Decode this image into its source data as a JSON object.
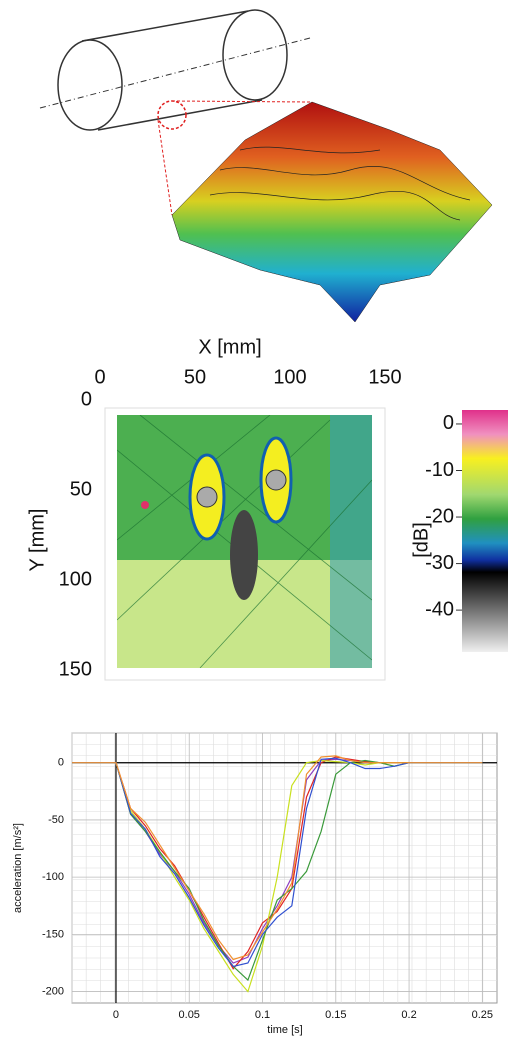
{
  "chart_data": [
    {
      "type": "heatmap",
      "xlabel": "X [mm]",
      "ylabel": "Y [mm]",
      "xlim": [
        0,
        150
      ],
      "ylim": [
        0,
        150
      ],
      "xticks": [
        0,
        50,
        100,
        150
      ],
      "yticks": [
        0,
        50,
        100,
        150
      ],
      "colorbar": {
        "label": "[dB]",
        "lim": [
          -49,
          3
        ],
        "ticks": [
          0,
          -10,
          -20,
          -30,
          -40
        ]
      }
    },
    {
      "type": "line",
      "xlabel": "time [s]",
      "ylabel": "acceleration [m/s²]",
      "x": [
        -0.03,
        -0.02,
        -0.01,
        0,
        0.01,
        0.02,
        0.03,
        0.04,
        0.05,
        0.06,
        0.07,
        0.08,
        0.09,
        0.1,
        0.11,
        0.12,
        0.13,
        0.14,
        0.15,
        0.16,
        0.17,
        0.18,
        0.19,
        0.2,
        0.21,
        0.22,
        0.23,
        0.24,
        0.25
      ],
      "series": [
        {
          "color": "#8e3fc0",
          "values": [
            0,
            0,
            0,
            0,
            -45,
            -60,
            -80,
            -95,
            -115,
            -140,
            -160,
            -175,
            -170,
            -145,
            -125,
            -100,
            -15,
            2,
            3,
            2,
            1,
            0,
            0,
            0,
            0,
            0,
            0,
            0,
            0
          ]
        },
        {
          "color": "#e02424",
          "values": [
            0,
            0,
            0,
            0,
            -40,
            -55,
            -75,
            -90,
            -112,
            -135,
            -158,
            -180,
            -165,
            -140,
            -130,
            -110,
            -30,
            0,
            5,
            3,
            1,
            0,
            0,
            0,
            0,
            0,
            0,
            0,
            0
          ]
        },
        {
          "color": "#c8e01e",
          "values": [
            0,
            0,
            0,
            0,
            -42,
            -58,
            -78,
            -100,
            -120,
            -145,
            -165,
            -185,
            -200,
            -160,
            -100,
            -20,
            0,
            2,
            1,
            0,
            -2,
            0,
            0,
            0,
            0,
            0,
            0,
            0,
            0
          ]
        },
        {
          "color": "#3a9a3a",
          "values": [
            0,
            0,
            0,
            0,
            -45,
            -60,
            -78,
            -95,
            -110,
            -138,
            -160,
            -178,
            -190,
            -155,
            -120,
            -110,
            -95,
            -60,
            -10,
            0,
            2,
            0,
            -3,
            0,
            0,
            0,
            0,
            0,
            0
          ]
        },
        {
          "color": "#3050d0",
          "values": [
            0,
            0,
            0,
            0,
            -44,
            -58,
            -82,
            -97,
            -118,
            -142,
            -162,
            -178,
            -175,
            -150,
            -135,
            -125,
            -40,
            3,
            4,
            0,
            -5,
            -5,
            -3,
            0,
            0,
            0,
            0,
            0,
            0
          ]
        },
        {
          "color": "#f09030",
          "values": [
            0,
            0,
            0,
            0,
            -40,
            -52,
            -72,
            -92,
            -112,
            -132,
            -155,
            -172,
            -168,
            -148,
            -128,
            -105,
            -10,
            5,
            6,
            2,
            0,
            0,
            0,
            0,
            0,
            0,
            0,
            0,
            0
          ]
        }
      ],
      "xlim": [
        -0.03,
        0.26
      ],
      "ylim": [
        -210,
        26
      ],
      "xticks": [
        0,
        0.05,
        0.1,
        0.15,
        0.2,
        0.25
      ],
      "yticks": [
        0,
        -50,
        -100,
        -150,
        -200
      ],
      "grid": true
    }
  ]
}
